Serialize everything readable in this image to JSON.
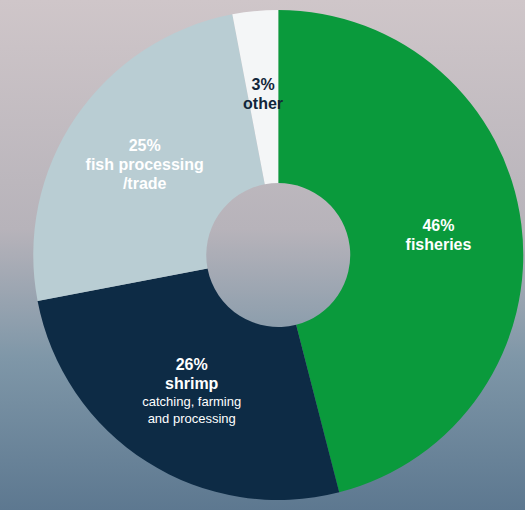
{
  "chart_data": {
    "type": "pie",
    "categories": [
      "fisheries",
      "shrimp",
      "fish processing/trade",
      "other"
    ],
    "values": [
      46,
      26,
      25,
      3
    ],
    "value_labels": [
      "46%",
      "26%",
      "25%",
      "3%"
    ],
    "descriptions": [
      null,
      "catching, farming and processing",
      null,
      null
    ],
    "colors": [
      "#0a9a3c",
      "#0d2b45",
      "#b9cdd3",
      "#f4f6f7"
    ],
    "data_labels": true
  }
}
